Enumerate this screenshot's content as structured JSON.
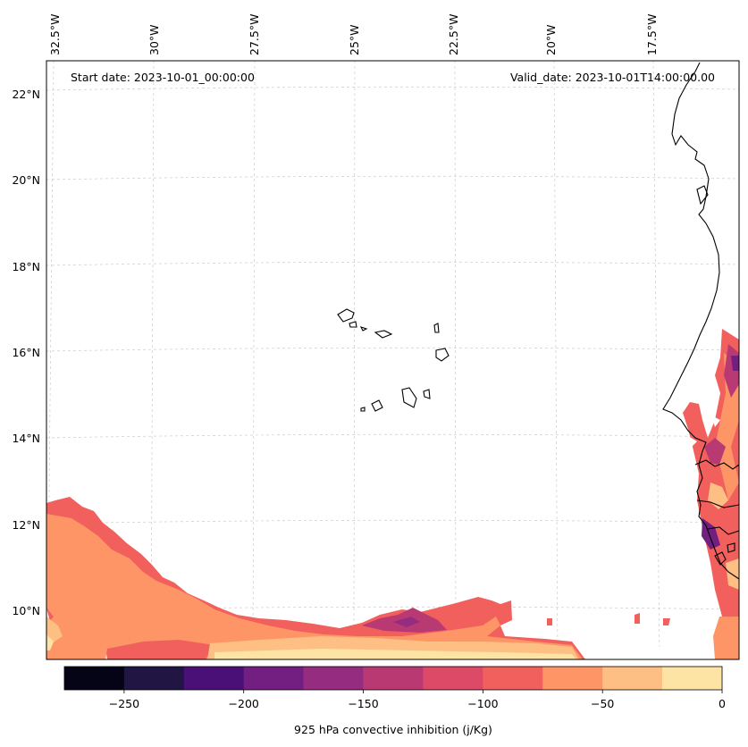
{
  "header": {
    "start_date": "Start date: 2023-10-01_00:00:00",
    "valid_date": "Valid_date: 2023-10-01T14:00:00.00"
  },
  "map": {
    "longitude_labels": [
      "32.5°W",
      "30°W",
      "27.5°W",
      "25°W",
      "22.5°W",
      "20°W",
      "17.5°W"
    ],
    "latitude_labels": [
      "22°N",
      "20°N",
      "18°N",
      "16°N",
      "14°N",
      "12°N",
      "10°N"
    ],
    "field_name": "925 hPa convective inhibition",
    "region": "Cabo Verde and West African coast"
  },
  "colorbar": {
    "label": "925 hPa convective inhibition (j/Kg)",
    "ticks": [
      "−250",
      "−200",
      "−150",
      "−100",
      "−50",
      "0"
    ],
    "levels": [
      -275,
      -250,
      -225,
      -200,
      -175,
      -150,
      -125,
      -100,
      -75,
      -50,
      -25,
      0
    ],
    "colors": [
      "#050416",
      "#211543",
      "#4a1077",
      "#721f81",
      "#962c80",
      "#b93a73",
      "#dd4a68",
      "#f1605d",
      "#fd9567",
      "#febf84",
      "#fde4a5"
    ]
  }
}
